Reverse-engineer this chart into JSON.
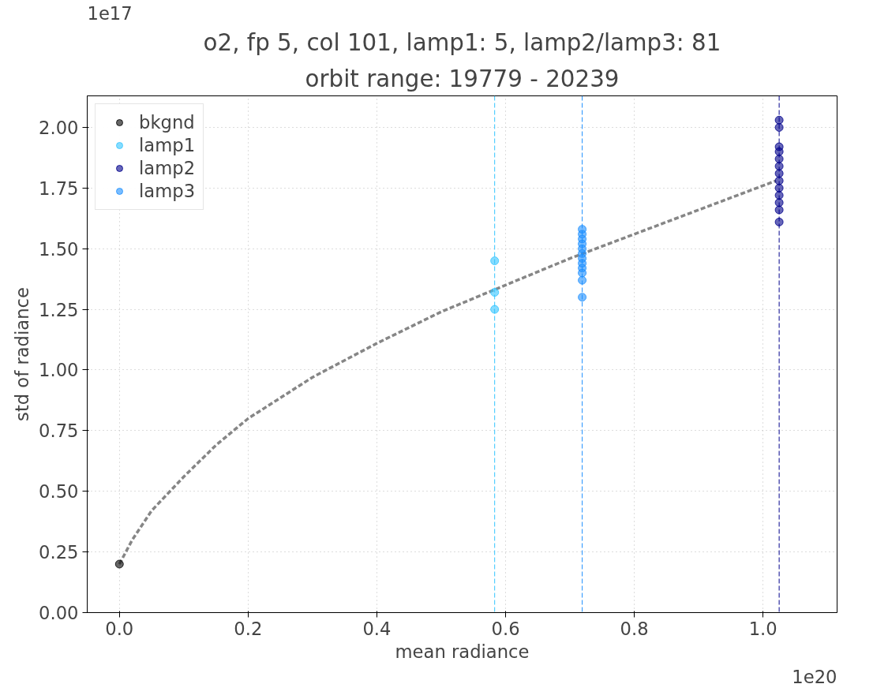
{
  "chart_data": {
    "type": "scatter",
    "title": "o2, fp 5, col 101, lamp1: 5, lamp2/lamp3: 81",
    "subtitle": "orbit range: 19779 - 20239",
    "xlabel": "mean radiance",
    "ylabel": "std of radiance",
    "annotations": [
      "1e17",
      "1e20"
    ],
    "xlim": [
      -0.05,
      1.115
    ],
    "ylim": [
      0,
      2.13
    ],
    "xticks": [
      {
        "value": 0,
        "label": "0.0"
      },
      0.2,
      0.4,
      0.6,
      0.8,
      {
        "value": 1,
        "label": "1.0"
      }
    ],
    "yticks": [
      {
        "value": 0,
        "label": "0.00"
      },
      {
        "value": 0.25,
        "label": "0.25"
      },
      {
        "value": 0.5,
        "label": "0.50"
      },
      {
        "value": 0.75,
        "label": "0.75"
      },
      {
        "value": 1,
        "label": "1.00"
      },
      {
        "value": 1.25,
        "label": "1.25"
      },
      {
        "value": 1.5,
        "label": "1.50"
      },
      {
        "value": 1.75,
        "label": "1.75"
      },
      {
        "value": 2,
        "label": "2.00"
      }
    ],
    "grid": true,
    "legend": "top left",
    "marker": "circle",
    "series": [
      {
        "name": "bkgnd",
        "color": "#000000",
        "x": [
          0.0
        ],
        "values": [
          0.2
        ]
      },
      {
        "name": "lamp1",
        "color": "#33c5ff",
        "x": [
          0.583,
          0.583,
          0.583
        ],
        "values": [
          1.45,
          1.32,
          1.25
        ]
      },
      {
        "name": "lamp2",
        "color": "#00008b",
        "x": [
          1.025,
          1.025,
          1.025,
          1.025,
          1.025,
          1.025,
          1.025,
          1.025,
          1.025,
          1.025,
          1.025,
          1.025,
          1.025
        ],
        "values": [
          2.03,
          2.0,
          1.92,
          1.9,
          1.87,
          1.84,
          1.81,
          1.78,
          1.75,
          1.72,
          1.69,
          1.66,
          1.61
        ]
      },
      {
        "name": "lamp3",
        "color": "#1e90ff",
        "x": [
          0.719,
          0.719,
          0.719,
          0.719,
          0.719,
          0.719,
          0.719,
          0.719,
          0.719,
          0.719,
          0.719,
          0.719
        ],
        "values": [
          1.58,
          1.56,
          1.54,
          1.52,
          1.5,
          1.48,
          1.46,
          1.44,
          1.42,
          1.4,
          1.37,
          1.3
        ]
      },
      {
        "type": "line",
        "marker": "none",
        "color": "#808080",
        "line_style": "dashed",
        "x": [
          0.0,
          0.02,
          0.05,
          0.1,
          0.15,
          0.2,
          0.3,
          0.4,
          0.5,
          0.6,
          0.7,
          0.8,
          0.9,
          1.02
        ],
        "values": [
          0.2,
          0.3,
          0.42,
          0.56,
          0.69,
          0.8,
          0.97,
          1.11,
          1.24,
          1.35,
          1.46,
          1.56,
          1.66,
          1.78
        ]
      }
    ],
    "ref_lines": [
      {
        "axis": "x",
        "value": 0.583,
        "color": "#33c5ff",
        "line_style": "dashed"
      },
      {
        "axis": "x",
        "value": 0.719,
        "color": "#1e90ff",
        "line_style": "dashed"
      },
      {
        "axis": "x",
        "value": 1.025,
        "color": "#00008b",
        "line_style": "dashed"
      }
    ]
  }
}
